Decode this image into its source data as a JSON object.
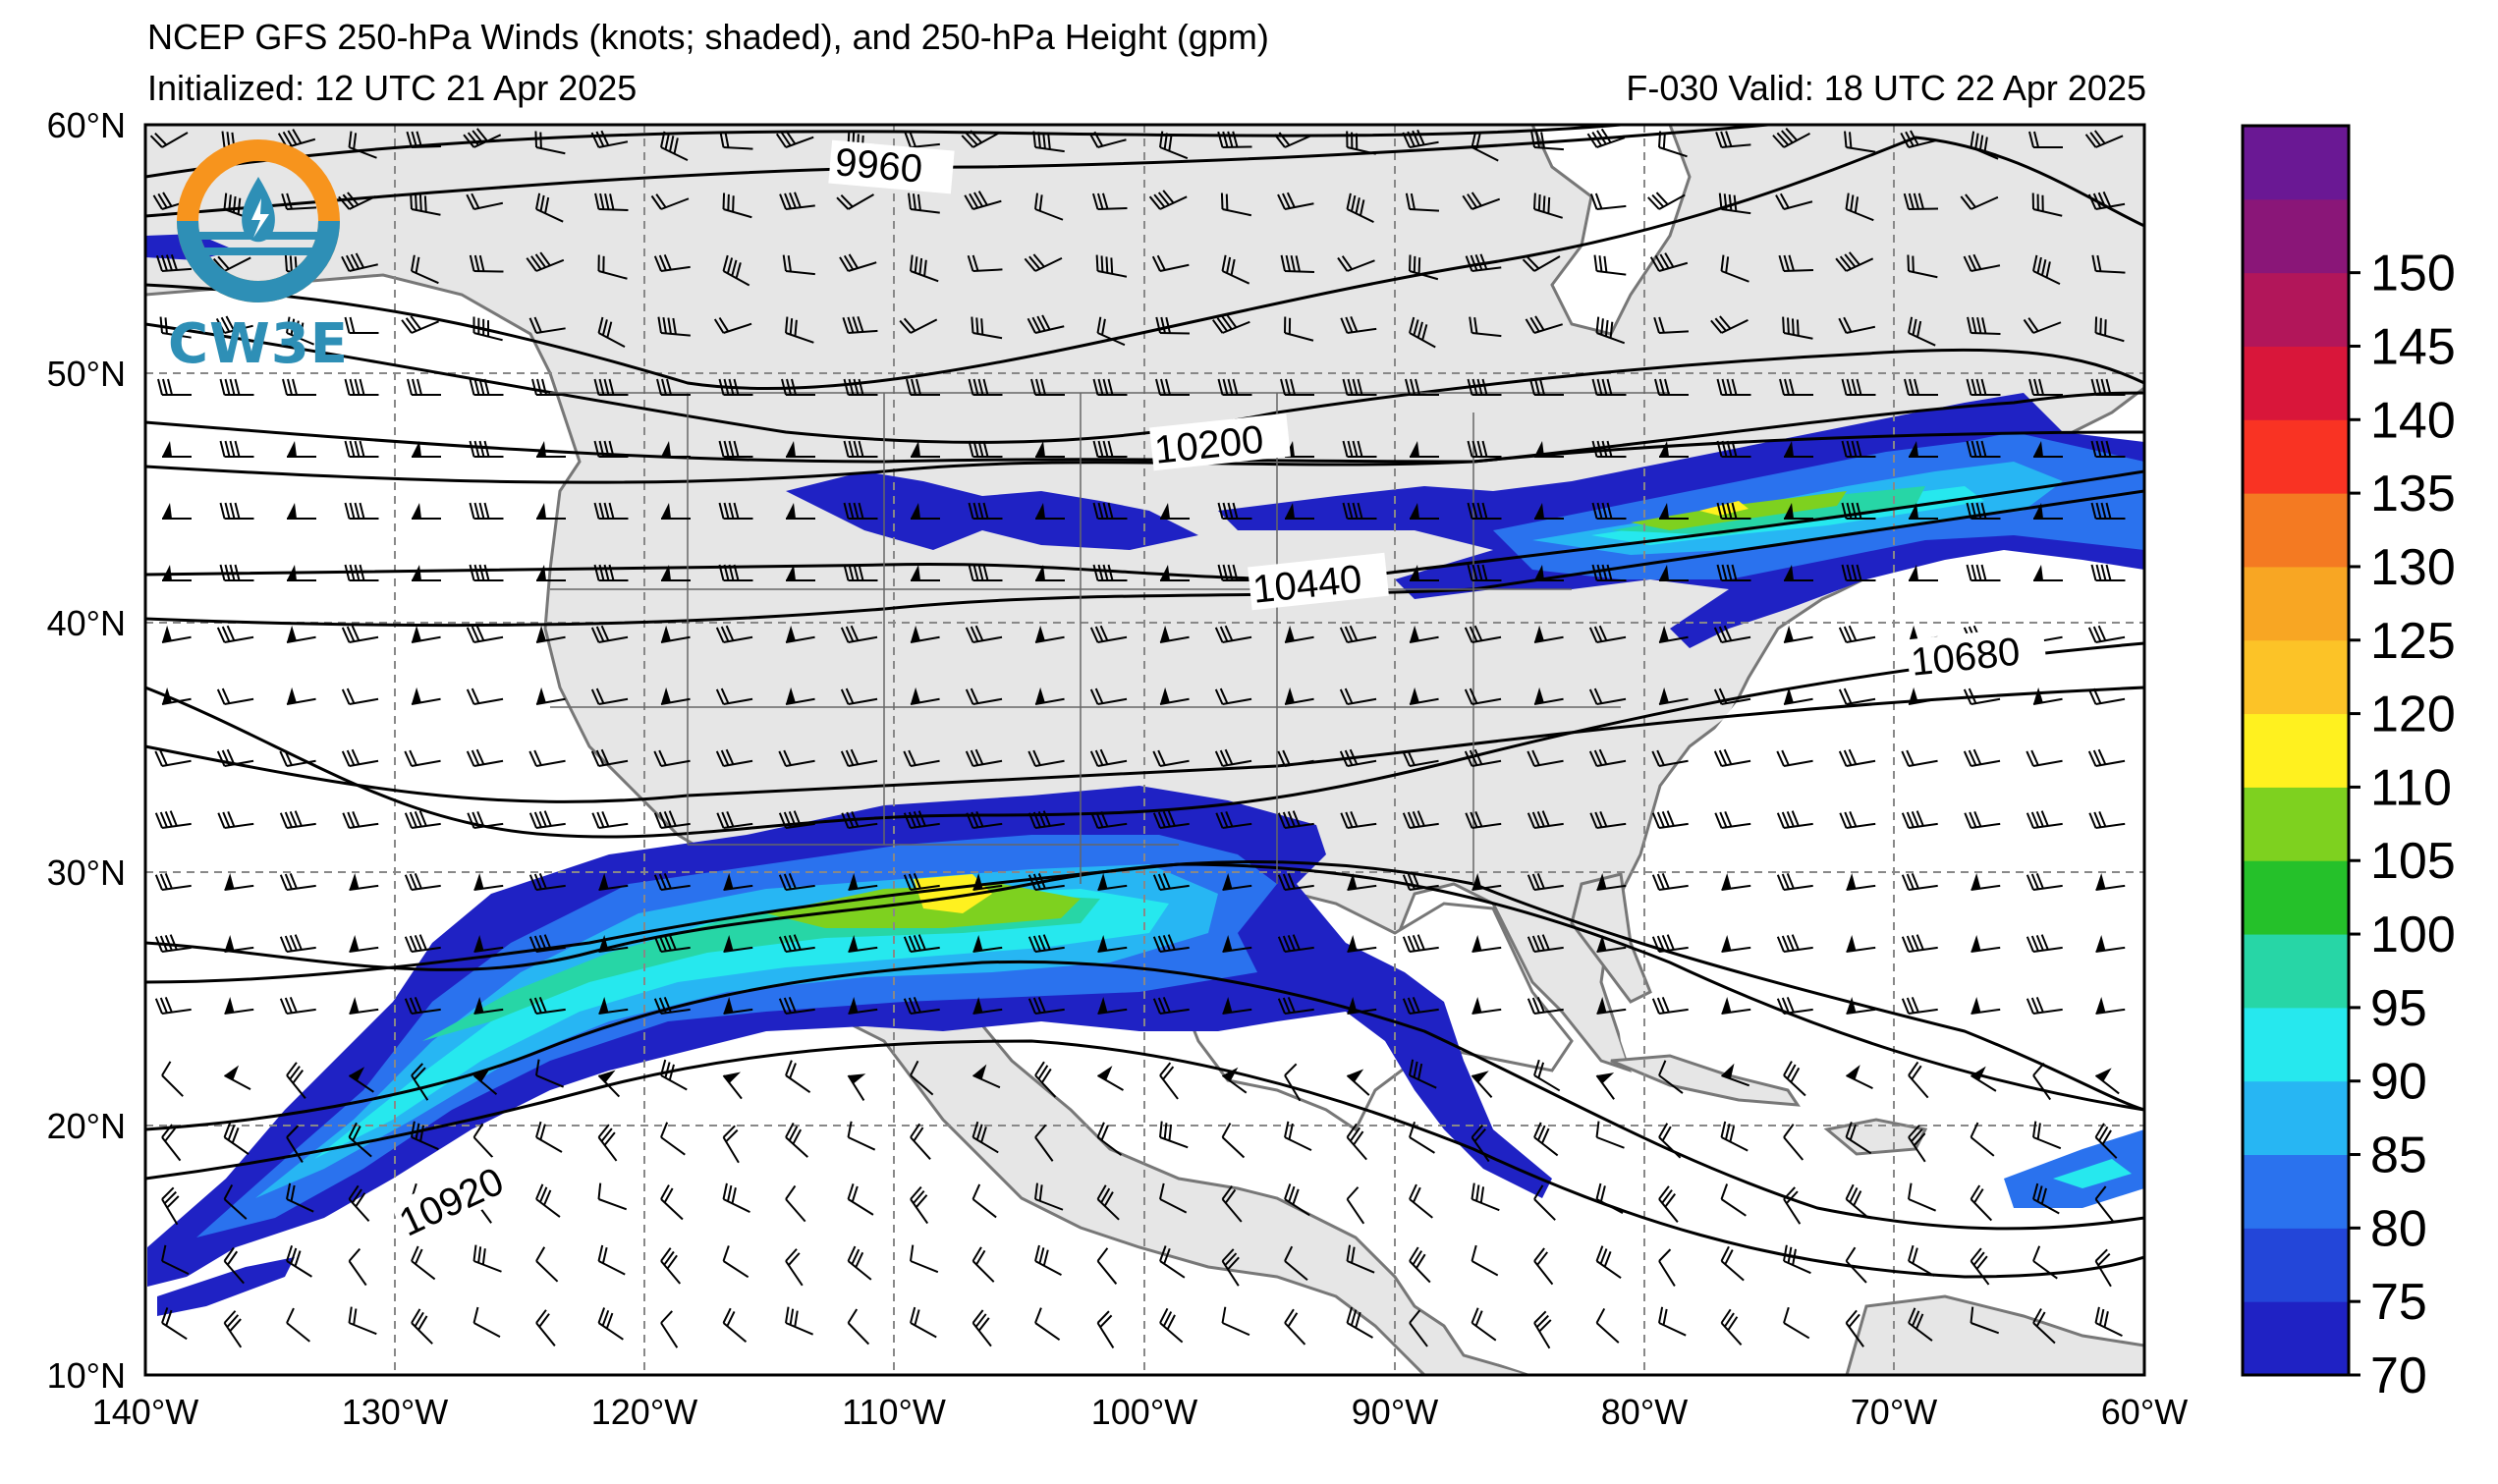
{
  "header": {
    "title": "NCEP GFS 250-hPa Winds (knots; shaded), and 250-hPa Height (gpm)",
    "initialized": "Initialized: 12 UTC 21 Apr 2025",
    "valid": "F-030  Valid: 18 UTC 22 Apr 2025"
  },
  "logo": {
    "text": "CW3E",
    "icon": "cw3e-logo-icon"
  },
  "map": {
    "lat_labels": [
      "60°N",
      "50°N",
      "40°N",
      "30°N",
      "20°N",
      "10°N"
    ],
    "lon_labels": [
      "140°W",
      "130°W",
      "120°W",
      "110°W",
      "100°W",
      "90°W",
      "80°W",
      "70°W",
      "60°W"
    ],
    "contour_labels": [
      "9960",
      "10200",
      "10440",
      "10680",
      "10920"
    ],
    "land_color": "#e6e6e6",
    "coast_color": "#777777"
  },
  "colorbar": {
    "ticks": [
      "70",
      "75",
      "80",
      "85",
      "90",
      "95",
      "100",
      "105",
      "110",
      "120",
      "125",
      "130",
      "135",
      "140",
      "145",
      "150"
    ],
    "colors": [
      "#1f22c4",
      "#2346d9",
      "#2a72ee",
      "#27b6f3",
      "#26e8ee",
      "#27d6a6",
      "#25c12a",
      "#7ed11f",
      "#fff11f",
      "#fcc327",
      "#f8a623",
      "#f47a22",
      "#f93323",
      "#d9163a",
      "#b2165a",
      "#8a1678",
      "#6a1894"
    ]
  }
}
